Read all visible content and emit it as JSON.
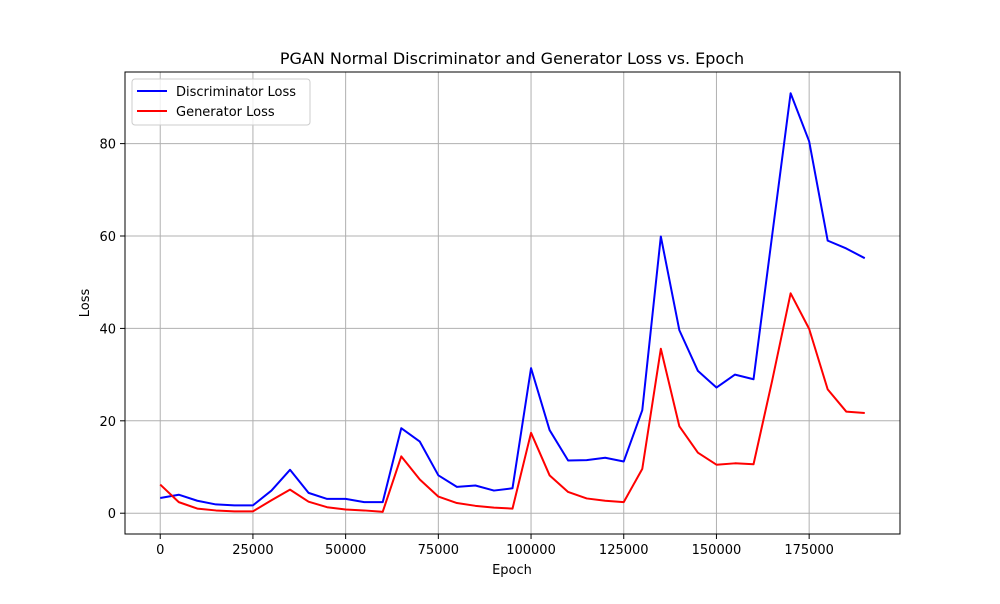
{
  "chart_data": {
    "type": "line",
    "title": "PGAN Normal Discriminator and Generator Loss vs. Epoch",
    "xlabel": "Epoch",
    "ylabel": "Loss",
    "xlim": [
      -9500,
      199500
    ],
    "ylim": [
      -4.5,
      95.5
    ],
    "xticks": [
      0,
      25000,
      50000,
      75000,
      100000,
      125000,
      150000,
      175000
    ],
    "xtick_labels": [
      "0",
      "25000",
      "50000",
      "75000",
      "100000",
      "125000",
      "150000",
      "175000"
    ],
    "yticks": [
      0,
      20,
      40,
      60,
      80
    ],
    "ytick_labels": [
      "0",
      "20",
      "40",
      "60",
      "80"
    ],
    "grid": true,
    "legend_position": "top-left",
    "x": [
      0,
      5000,
      10000,
      15000,
      20000,
      25000,
      30000,
      35000,
      40000,
      45000,
      50000,
      55000,
      60000,
      65000,
      70000,
      75000,
      80000,
      85000,
      90000,
      95000,
      100000,
      105000,
      110000,
      115000,
      120000,
      125000,
      130000,
      135000,
      140000,
      145000,
      150000,
      155000,
      160000,
      165000,
      170000,
      175000,
      180000,
      185000,
      190000
    ],
    "series": [
      {
        "name": "Discriminator Loss",
        "color": "#0000ff",
        "values": [
          3.3,
          4.0,
          2.7,
          1.9,
          1.7,
          1.7,
          4.9,
          9.4,
          4.4,
          3.1,
          3.1,
          2.4,
          2.4,
          18.4,
          15.5,
          8.2,
          5.7,
          6.0,
          4.9,
          5.4,
          31.4,
          18.0,
          11.4,
          11.5,
          12.0,
          11.2,
          22.3,
          59.9,
          39.6,
          30.8,
          27.2,
          30.0,
          29.0,
          60.0,
          90.9,
          80.5,
          59.0,
          57.3,
          55.2
        ]
      },
      {
        "name": "Generator Loss",
        "color": "#ff0000",
        "values": [
          6.2,
          2.4,
          1.0,
          0.6,
          0.4,
          0.4,
          2.8,
          5.1,
          2.5,
          1.3,
          0.8,
          0.6,
          0.3,
          12.3,
          7.3,
          3.6,
          2.2,
          1.6,
          1.2,
          1.0,
          17.4,
          8.2,
          4.6,
          3.2,
          2.7,
          2.4,
          9.6,
          35.6,
          18.8,
          13.1,
          10.5,
          10.8,
          10.6,
          28.6,
          47.6,
          39.9,
          26.8,
          22.0,
          21.7
        ]
      }
    ]
  }
}
